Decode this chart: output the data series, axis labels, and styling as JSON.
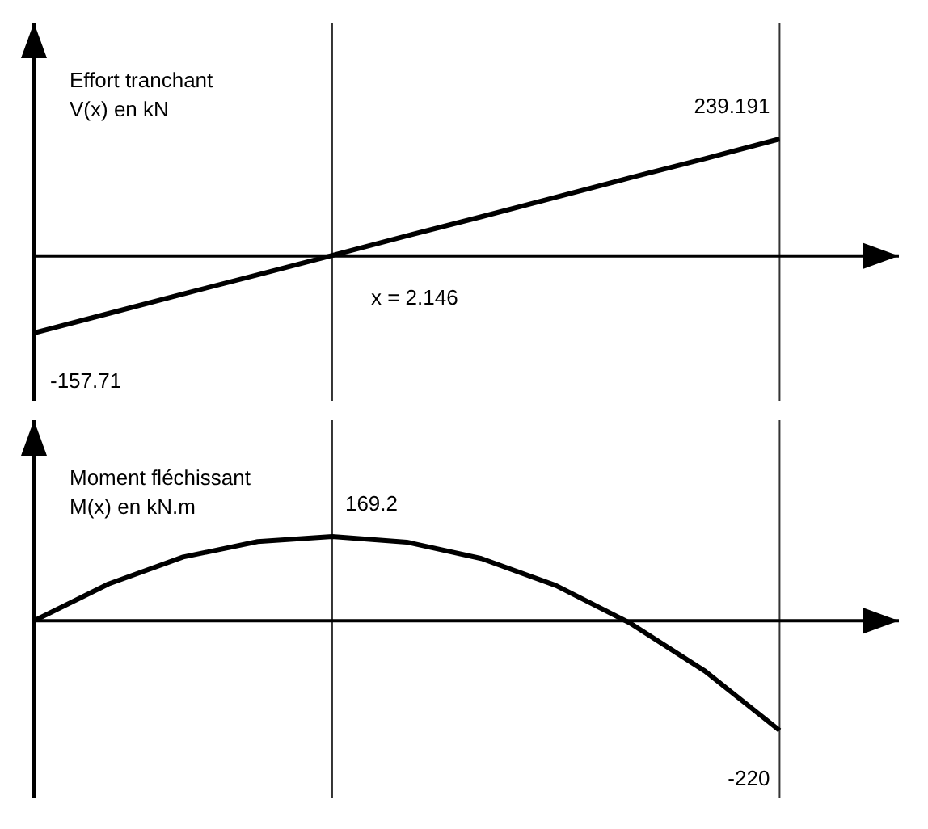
{
  "chart_data": [
    {
      "type": "line",
      "ylabel": "Effort tranchant\nV(x) en kN",
      "categories": [
        null,
        null,
        null,
        null,
        null,
        null,
        null,
        null,
        null,
        null,
        null
      ],
      "values": [
        -157.71,
        -118,
        -78,
        -39,
        1,
        41,
        80,
        120,
        160,
        199,
        239.191
      ],
      "value_labels": [
        "-157.71",
        null,
        null,
        null,
        null,
        null,
        null,
        null,
        null,
        null,
        "239.191"
      ],
      "color": "#000000",
      "marker": "none",
      "line_style": "solid",
      "tick_labels": false,
      "grid": false,
      "legend": false,
      "annotations": [
        "x = 2.146"
      ]
    },
    {
      "type": "line",
      "ylabel": "Moment fléchissant\nM(x) en kN.m",
      "categories": [
        null,
        null,
        null,
        null,
        null,
        null,
        null,
        null,
        null,
        null,
        null
      ],
      "values": [
        0,
        74,
        128,
        159,
        169.2,
        158,
        125,
        71,
        -5,
        -101,
        -220
      ],
      "value_labels": [
        null,
        null,
        null,
        null,
        "169.2",
        null,
        null,
        null,
        null,
        null,
        "-220"
      ],
      "color": "#000000",
      "marker": "none",
      "line_style": "solid",
      "tick_labels": false,
      "grid": false,
      "legend": false
    }
  ]
}
